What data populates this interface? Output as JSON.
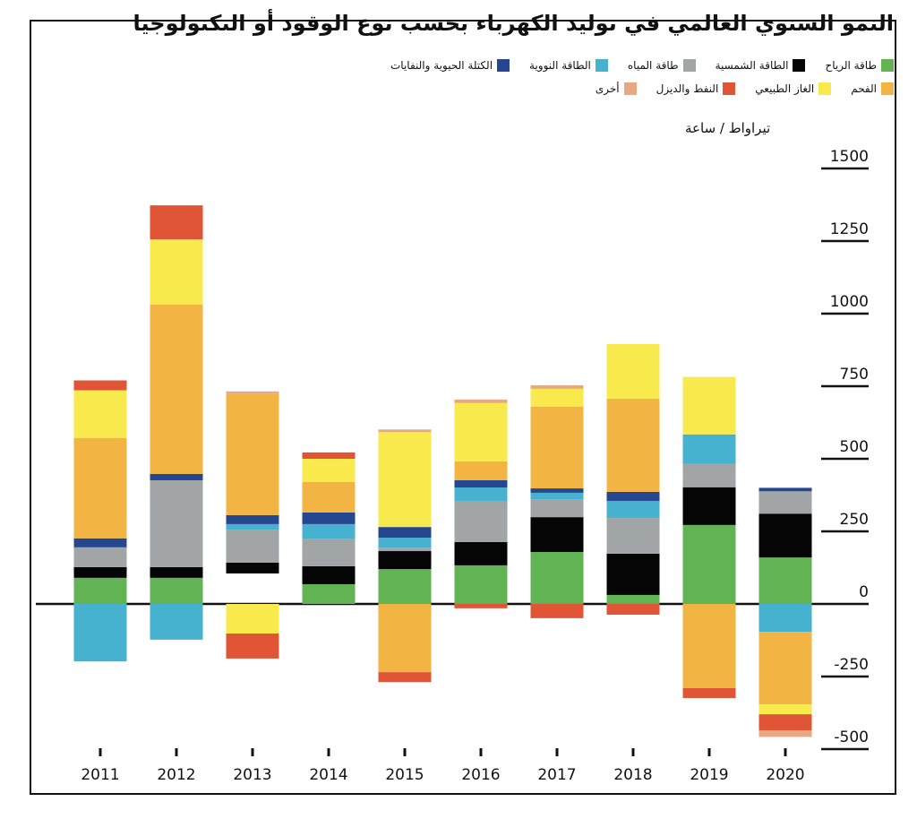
{
  "chart_data": {
    "type": "bar",
    "stacked": true,
    "title": "النمو السنوي العالمي في توليد الكهرباء بحسب نوع الوقود أو التكنولوجيا",
    "ylabel": "تيراواط / ساعة",
    "xlabel": "",
    "ylim": [
      -500,
      1500
    ],
    "yticks": [
      1500,
      1250,
      1000,
      750,
      500,
      250,
      0,
      -250,
      -500
    ],
    "ytick_labels": [
      "1500",
      "1250",
      "1000",
      "750",
      "500",
      "250",
      "0",
      "-250",
      "-500"
    ],
    "legend_position": "top-right",
    "categories": [
      "2011",
      "2012",
      "2013",
      "2014",
      "2015",
      "2016",
      "2017",
      "2018",
      "2019",
      "2020"
    ],
    "positive_base": [
      0,
      0,
      105,
      0,
      0,
      0,
      0,
      0,
      0,
      0
    ],
    "series": [
      {
        "key": "wind",
        "name": "طاقة الرياح",
        "color": "#62b354",
        "values": [
          90,
          90,
          0,
          68,
          120,
          133,
          179,
          31,
          272,
          160
        ]
      },
      {
        "key": "solar",
        "name": "الطاقة الشمسية",
        "color": "#050505",
        "values": [
          37,
          37,
          37,
          62,
          62,
          80,
          120,
          142,
          130,
          151
        ]
      },
      {
        "key": "hydro",
        "name": "طاقة المياه",
        "color": "#a2a5a5",
        "values": [
          68,
          299,
          114,
          93,
          12,
          142,
          62,
          123,
          80,
          77
        ]
      },
      {
        "key": "nuclear",
        "name": "الطاقة النووية",
        "color": "#47b2d0",
        "values": [
          -198,
          -123,
          19,
          52,
          34,
          46,
          22,
          59,
          102,
          -96
        ]
      },
      {
        "key": "biomass",
        "name": "الكتلة الحيوية والنفايات",
        "color": "#24478f",
        "values": [
          31,
          22,
          31,
          40,
          37,
          25,
          15,
          31,
          0,
          12
        ]
      },
      {
        "key": "coal",
        "name": "الفحم",
        "color": "#f2b443",
        "values": [
          346,
          583,
          417,
          105,
          -235,
          65,
          281,
          321,
          -290,
          -250
        ]
      },
      {
        "key": "gas",
        "name": "الغاز الطبيعي",
        "color": "#f8e94d",
        "values": [
          164,
          225,
          -102,
          80,
          327,
          201,
          62,
          188,
          198,
          -34
        ]
      },
      {
        "key": "oil",
        "name": "النفط والديزل",
        "color": "#e05535",
        "values": [
          34,
          117,
          -86,
          22,
          -34,
          -15,
          -49,
          -37,
          -34,
          -56
        ]
      },
      {
        "key": "other",
        "name": "أخرى",
        "color": "#e7a882",
        "values": [
          0,
          0,
          9,
          0,
          9,
          12,
          12,
          0,
          0,
          -22
        ]
      }
    ]
  }
}
